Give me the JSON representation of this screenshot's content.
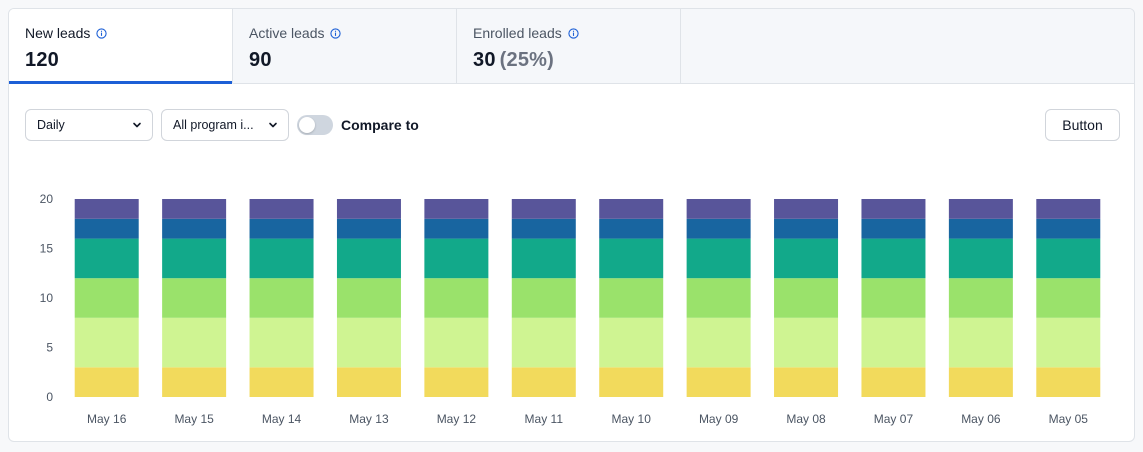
{
  "tabs": [
    {
      "label": "New leads",
      "value": "120",
      "sub": ""
    },
    {
      "label": "Active leads",
      "value": "90",
      "sub": ""
    },
    {
      "label": "Enrolled leads",
      "value": "30",
      "sub": "(25%)"
    }
  ],
  "toolbar": {
    "interval": "Daily",
    "program": "All program i...",
    "compare_label": "Compare to",
    "compare_on": false,
    "button_label": "Button"
  },
  "colors": {
    "accent": "#1c5fd6",
    "series": [
      "#f2da5c",
      "#cff492",
      "#9ae26b",
      "#12a98a",
      "#1865a0",
      "#58559a"
    ]
  },
  "chart_data": {
    "type": "bar",
    "stacked": true,
    "categories": [
      "May 16",
      "May 15",
      "May 14",
      "May 13",
      "May 12",
      "May 11",
      "May 10",
      "May 09",
      "May 08",
      "May 07",
      "May 06",
      "May 05"
    ],
    "series": [
      {
        "values": [
          3,
          3,
          3,
          3,
          3,
          3,
          3,
          3,
          3,
          3,
          3,
          3
        ]
      },
      {
        "values": [
          5,
          5,
          5,
          5,
          5,
          5,
          5,
          5,
          5,
          5,
          5,
          5
        ]
      },
      {
        "values": [
          4,
          4,
          4,
          4,
          4,
          4,
          4,
          4,
          4,
          4,
          4,
          4
        ]
      },
      {
        "values": [
          4,
          4,
          4,
          4,
          4,
          4,
          4,
          4,
          4,
          4,
          4,
          4
        ]
      },
      {
        "values": [
          2,
          2,
          2,
          2,
          2,
          2,
          2,
          2,
          2,
          2,
          2,
          2
        ]
      },
      {
        "values": [
          2,
          2,
          2,
          2,
          2,
          2,
          2,
          2,
          2,
          2,
          2,
          2
        ]
      }
    ],
    "yticks": [
      0,
      5,
      10,
      15,
      20
    ],
    "ylim": [
      0,
      20
    ],
    "grid": false,
    "legend": "none"
  }
}
